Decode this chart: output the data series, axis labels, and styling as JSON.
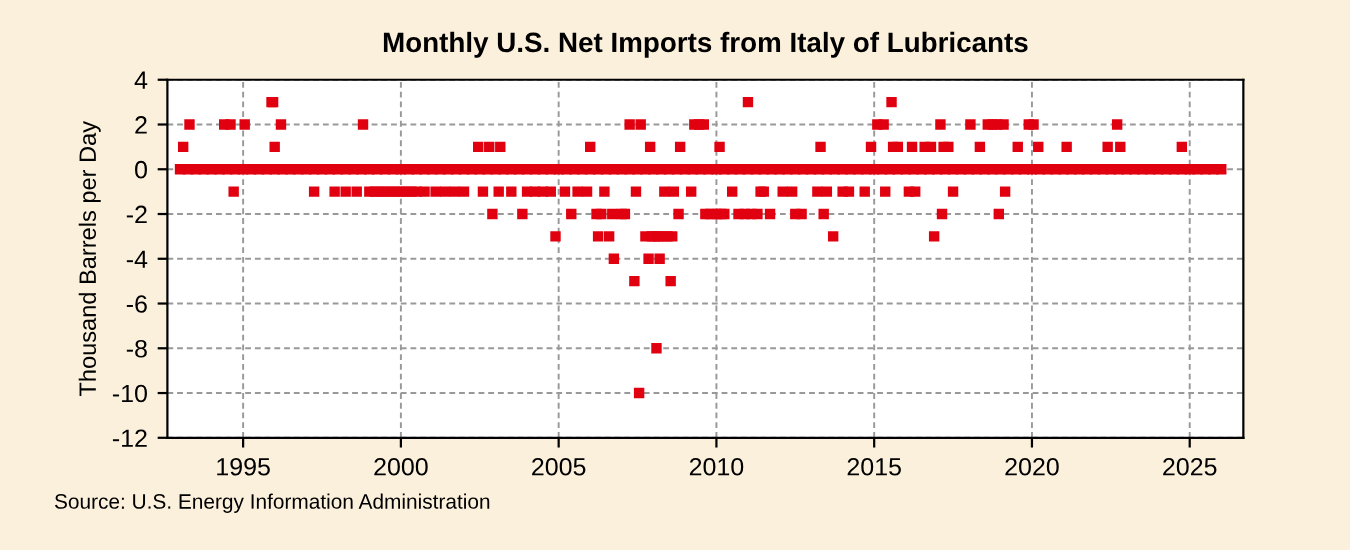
{
  "chart_data": {
    "type": "scatter",
    "title": "Monthly U.S. Net Imports from Italy of Lubricants",
    "ylabel": "Thousand Barrels per Day",
    "annotations": [
      "Source: U.S. Energy Information Administration"
    ],
    "xlim": [
      1992.6,
      2026.7
    ],
    "xticks": [
      1995,
      2000,
      2005,
      2010,
      2015,
      2020,
      2025
    ],
    "ylim": [
      -12,
      4
    ],
    "yticks": [
      -12,
      -10,
      -8,
      -6,
      -4,
      -2,
      0,
      2,
      4
    ],
    "grid": true,
    "marker": "square",
    "series": [
      {
        "color": "#e00010",
        "x": [
          1993.1,
          1993.3,
          1994.4,
          1994.6,
          1994.7,
          1995.05,
          1995.9,
          1995.95,
          1996.0,
          1996.2,
          1997.25,
          1997.9,
          1998.25,
          1998.6,
          1998.8,
          1999.0,
          1999.17,
          1999.33,
          1999.5,
          1999.67,
          1999.83,
          2000.0,
          2000.17,
          2000.33,
          2000.5,
          2000.75,
          2001.1,
          2001.4,
          2001.7,
          2002.0,
          2002.45,
          2002.6,
          2002.8,
          2002.9,
          2003.1,
          2003.15,
          2003.5,
          2003.85,
          2004.0,
          2004.25,
          2004.5,
          2004.75,
          2004.9,
          2005.2,
          2005.4,
          2005.6,
          2005.9,
          2006.0,
          2006.2,
          2006.25,
          2006.35,
          2006.45,
          2006.6,
          2006.7,
          2006.75,
          2007.0,
          2007.1,
          2007.25,
          2007.4,
          2007.45,
          2007.55,
          2007.6,
          2007.75,
          2007.85,
          2007.9,
          2007.95,
          2008.05,
          2008.1,
          2008.15,
          2008.2,
          2008.3,
          2008.35,
          2008.45,
          2008.55,
          2008.6,
          2008.65,
          2008.8,
          2008.85,
          2009.2,
          2009.3,
          2009.45,
          2009.6,
          2009.65,
          2009.8,
          2010.0,
          2010.1,
          2010.15,
          2010.25,
          2010.5,
          2010.7,
          2010.9,
          2011.0,
          2011.1,
          2011.3,
          2011.4,
          2011.5,
          2011.7,
          2012.1,
          2012.4,
          2012.5,
          2012.7,
          2013.2,
          2013.3,
          2013.4,
          2013.5,
          2013.7,
          2014.0,
          2014.2,
          2014.7,
          2014.9,
          2015.1,
          2015.3,
          2015.35,
          2015.55,
          2015.6,
          2015.75,
          2016.1,
          2016.2,
          2016.3,
          2016.6,
          2016.8,
          2016.9,
          2017.1,
          2017.15,
          2017.2,
          2017.35,
          2017.5,
          2018.05,
          2018.35,
          2018.6,
          2018.75,
          2018.9,
          2018.95,
          2019.1,
          2019.15,
          2019.55,
          2019.9,
          2020.05,
          2020.2,
          2021.1,
          2022.4,
          2022.7,
          2022.8,
          2024.75
        ],
        "values": [
          1,
          2,
          2,
          2,
          -1,
          2,
          3,
          3,
          1,
          2,
          -1,
          -1,
          -1,
          -1,
          2,
          -1,
          -1,
          -1,
          -1,
          -1,
          -1,
          -1,
          -1,
          -1,
          -1,
          -1,
          -1,
          -1,
          -1,
          -1,
          1,
          -1,
          1,
          -2,
          -1,
          1,
          -1,
          -2,
          -1,
          -1,
          -1,
          -1,
          -3,
          -1,
          -2,
          -1,
          -1,
          1,
          -2,
          -3,
          -2,
          -1,
          -3,
          -2,
          -4,
          -2,
          -2,
          2,
          -5,
          -1,
          -10,
          2,
          -3,
          -4,
          1,
          -3,
          -3,
          -8,
          -3,
          -4,
          -3,
          -1,
          -3,
          -5,
          -3,
          -1,
          -2,
          1,
          -1,
          2,
          2,
          2,
          -2,
          -2,
          -2,
          1,
          -2,
          -2,
          -1,
          -2,
          -2,
          3,
          -2,
          -2,
          -1,
          -1,
          -2,
          -1,
          -1,
          -2,
          -2,
          -1,
          1,
          -2,
          -1,
          -3,
          -1,
          -1,
          -1,
          1,
          2,
          2,
          -1,
          3,
          1,
          1,
          -1,
          1,
          -1,
          1,
          1,
          -3,
          2,
          -2,
          1,
          1,
          -1,
          2,
          1,
          2,
          2,
          2,
          -2,
          2,
          -1,
          1,
          2,
          2,
          1,
          1,
          1,
          2,
          1,
          1
        ]
      },
      {
        "color": "#e00010",
        "x": [
          1993.0,
          1993.25,
          1993.5,
          1993.75,
          1994.0,
          1994.25,
          1994.5,
          1994.75,
          1995.0,
          1995.25,
          1995.5,
          1995.75,
          1996.0,
          1996.25,
          1996.5,
          1996.75,
          1997.0,
          1997.25,
          1997.5,
          1997.75,
          1998.0,
          1998.25,
          1998.5,
          1998.75,
          1999.0,
          1999.25,
          1999.5,
          1999.75,
          2000.0,
          2000.25,
          2000.5,
          2000.75,
          2001.0,
          2001.25,
          2001.5,
          2001.75,
          2002.0,
          2002.25,
          2002.5,
          2002.75,
          2003.0,
          2003.25,
          2003.5,
          2003.75,
          2004.0,
          2004.25,
          2004.5,
          2004.75,
          2005.0,
          2005.25,
          2005.5,
          2005.75,
          2006.0,
          2006.25,
          2006.5,
          2006.75,
          2007.0,
          2007.25,
          2007.5,
          2007.75,
          2008.0,
          2008.25,
          2008.5,
          2008.75,
          2009.0,
          2009.25,
          2009.5,
          2009.75,
          2010.0,
          2010.25,
          2010.5,
          2010.75,
          2011.0,
          2011.25,
          2011.5,
          2011.75,
          2012.0,
          2012.25,
          2012.5,
          2012.75,
          2013.0,
          2013.25,
          2013.5,
          2013.75,
          2014.0,
          2014.25,
          2014.5,
          2014.75,
          2015.0,
          2015.25,
          2015.5,
          2015.75,
          2016.0,
          2016.25,
          2016.5,
          2016.75,
          2017.0,
          2017.25,
          2017.5,
          2017.75,
          2018.0,
          2018.25,
          2018.5,
          2018.75,
          2019.0,
          2019.25,
          2019.5,
          2019.75,
          2020.0,
          2020.25,
          2020.5,
          2020.75,
          2021.0,
          2021.25,
          2021.5,
          2021.75,
          2022.0,
          2022.25,
          2022.5,
          2022.75,
          2023.0,
          2023.25,
          2023.5,
          2023.75,
          2024.0,
          2024.25,
          2024.5,
          2024.75,
          2025.0,
          2025.25,
          2025.5,
          2025.75,
          2026.0
        ],
        "values": [
          0,
          0,
          0,
          0,
          0,
          0,
          0,
          0,
          0,
          0,
          0,
          0,
          0,
          0,
          0,
          0,
          0,
          0,
          0,
          0,
          0,
          0,
          0,
          0,
          0,
          0,
          0,
          0,
          0,
          0,
          0,
          0,
          0,
          0,
          0,
          0,
          0,
          0,
          0,
          0,
          0,
          0,
          0,
          0,
          0,
          0,
          0,
          0,
          0,
          0,
          0,
          0,
          0,
          0,
          0,
          0,
          0,
          0,
          0,
          0,
          0,
          0,
          0,
          0,
          0,
          0,
          0,
          0,
          0,
          0,
          0,
          0,
          0,
          0,
          0,
          0,
          0,
          0,
          0,
          0,
          0,
          0,
          0,
          0,
          0,
          0,
          0,
          0,
          0,
          0,
          0,
          0,
          0,
          0,
          0,
          0,
          0,
          0,
          0,
          0,
          0,
          0,
          0,
          0,
          0,
          0,
          0,
          0,
          0,
          0,
          0,
          0,
          0,
          0,
          0,
          0,
          0,
          0,
          0,
          0,
          0,
          0,
          0,
          0,
          0,
          0,
          0,
          0,
          0,
          0,
          0,
          0,
          0
        ]
      }
    ]
  }
}
